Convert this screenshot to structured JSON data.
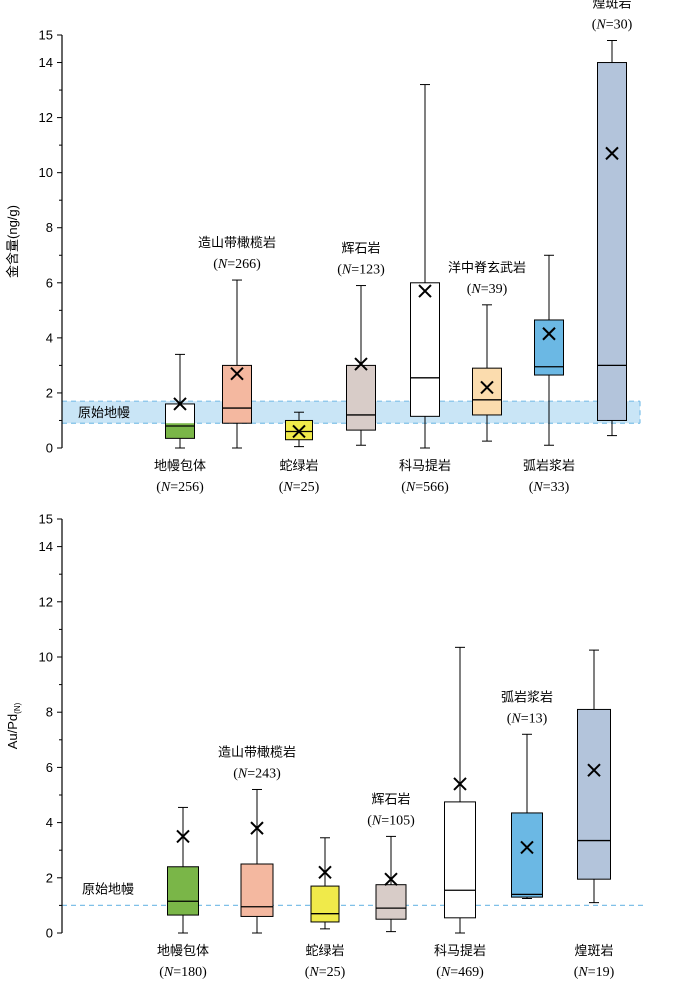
{
  "chart_data": [
    {
      "type": "box",
      "ylabel": "金含量(ng/g)",
      "ylim": [
        0,
        15
      ],
      "yticks": [
        0,
        2,
        4,
        6,
        8,
        10,
        12,
        14,
        15
      ],
      "reference": {
        "label": "原始地幔",
        "band": [
          0.9,
          1.7
        ],
        "color": "#c9e5f6"
      },
      "boxes": [
        {
          "name": "地幔包体",
          "n_text": "=256",
          "color": "#ffffff",
          "min": 0.0,
          "q1": 0.35,
          "median": 0.8,
          "q3": 1.6,
          "max": 3.4,
          "mean": 1.6,
          "fill_split": 0.9,
          "fill_color": "#7ab648",
          "label_pos": "below"
        },
        {
          "name": "造山带橄榄岩",
          "n_text": "=266",
          "color": "#f4b8a0",
          "min": 0.0,
          "q1": 0.9,
          "median": 1.45,
          "q3": 3.0,
          "max": 6.1,
          "mean": 2.7,
          "label_pos": "above"
        },
        {
          "name": "蛇绿岩",
          "n_text": "=25",
          "color": "#f0ea4a",
          "min": 0.05,
          "q1": 0.3,
          "median": 0.6,
          "q3": 1.0,
          "max": 1.3,
          "mean": 0.6,
          "label_pos": "below"
        },
        {
          "name": "辉石岩",
          "n_text": "=123",
          "color": "#d8ccc8",
          "min": 0.1,
          "q1": 0.65,
          "median": 1.2,
          "q3": 3.0,
          "max": 5.9,
          "mean": 3.05,
          "label_pos": "above"
        },
        {
          "name": "科马提岩",
          "n_text": "=566",
          "color": "#ffffff",
          "min": 0.0,
          "q1": 1.15,
          "median": 2.55,
          "q3": 6.0,
          "max": 13.2,
          "mean": 5.7,
          "label_pos": "below"
        },
        {
          "name": "洋中脊玄武岩",
          "n_text": "=39",
          "color": "#fbdcae",
          "min": 0.25,
          "q1": 1.2,
          "median": 1.75,
          "q3": 2.9,
          "max": 5.2,
          "mean": 2.2,
          "label_pos": "above"
        },
        {
          "name": "弧岩浆岩",
          "n_text": "=33",
          "color": "#6bb8e4",
          "min": 0.1,
          "q1": 2.65,
          "median": 2.95,
          "q3": 4.65,
          "max": 7.0,
          "mean": 4.15,
          "label_pos": "below"
        },
        {
          "name": "煌斑岩",
          "n_text": "=30",
          "color": "#b3c4db",
          "min": 0.45,
          "q1": 1.0,
          "median": 3.0,
          "q3": 14.0,
          "max": 14.8,
          "mean": 10.7,
          "label_pos": "above"
        }
      ]
    },
    {
      "type": "box",
      "ylabel": "Au/Pd",
      "ylabel_sub": "(N)",
      "ylim": [
        0,
        15
      ],
      "yticks": [
        0,
        2,
        4,
        6,
        8,
        10,
        12,
        14,
        15
      ],
      "reference": {
        "label": "原始地幔",
        "value": 1.0
      },
      "boxes": [
        {
          "name": "地幔包体",
          "n_text": "=180",
          "color": "#7ab648",
          "min": 0.0,
          "q1": 0.65,
          "median": 1.15,
          "q3": 2.4,
          "max": 4.55,
          "mean": 3.5,
          "label_pos": "below"
        },
        {
          "name": "造山带橄榄岩",
          "n_text": "=243",
          "color": "#f4b8a0",
          "min": 0.0,
          "q1": 0.6,
          "median": 0.95,
          "q3": 2.5,
          "max": 5.2,
          "mean": 3.8,
          "label_pos": "above"
        },
        {
          "name": "蛇绿岩",
          "n_text": "=25",
          "color": "#f0ea4a",
          "min": 0.15,
          "q1": 0.4,
          "median": 0.7,
          "q3": 1.7,
          "max": 3.45,
          "mean": 2.2,
          "label_pos": "below"
        },
        {
          "name": "辉石岩",
          "n_text": "=105",
          "color": "#d8ccc8",
          "min": 0.05,
          "q1": 0.5,
          "median": 0.9,
          "q3": 1.75,
          "max": 3.5,
          "mean": 1.95,
          "label_pos": "above"
        },
        {
          "name": "科马提岩",
          "n_text": "=469",
          "color": "#ffffff",
          "min": 0.0,
          "q1": 0.55,
          "median": 1.55,
          "q3": 4.75,
          "max": 10.35,
          "mean": 5.4,
          "label_pos": "below"
        },
        {
          "name": "弧岩浆岩",
          "n_text": "=13",
          "color": "#6bb8e4",
          "min": 1.25,
          "q1": 1.3,
          "median": 1.4,
          "q3": 4.35,
          "max": 7.2,
          "mean": 3.1,
          "label_pos": "above"
        },
        {
          "name": "煌斑岩",
          "n_text": "=19",
          "color": "#b3c4db",
          "min": 1.1,
          "q1": 1.95,
          "median": 3.35,
          "q3": 8.1,
          "max": 10.25,
          "mean": 5.9,
          "label_pos": "below"
        }
      ]
    }
  ]
}
